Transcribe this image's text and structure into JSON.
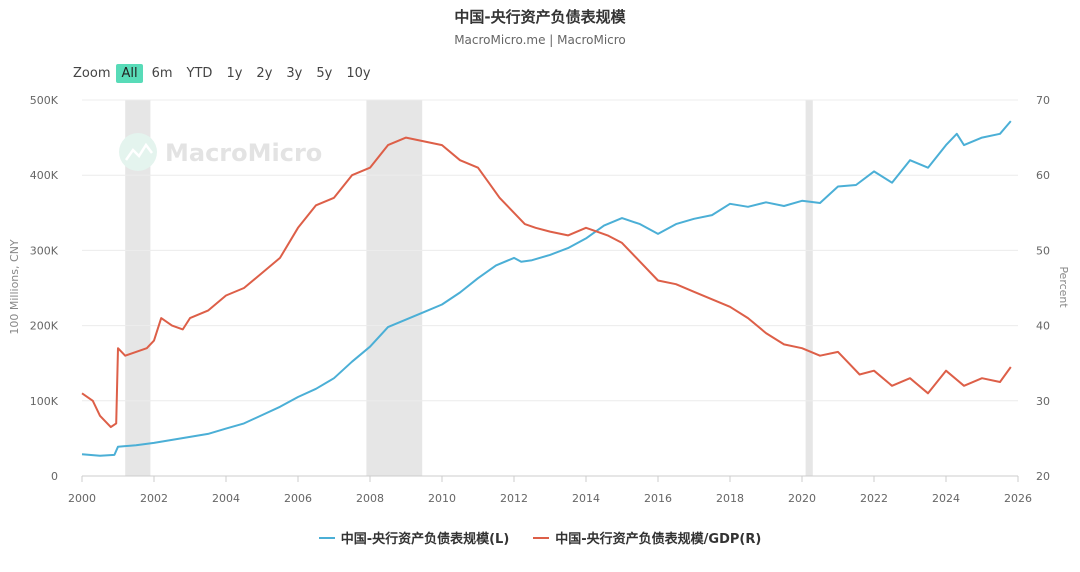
{
  "header": {
    "title": "中国-央行资产负债表规模",
    "subtitle": "MacroMicro.me | MacroMicro",
    "watermark": "MacroMicro"
  },
  "zoom": {
    "label": "Zoom",
    "buttons": [
      "All",
      "6m",
      "YTD",
      "1y",
      "2y",
      "3y",
      "5y",
      "10y"
    ],
    "active": "All"
  },
  "colors": {
    "left_series": "#4bafd6",
    "right_series": "#dd5f48",
    "shade": "#e6e6e6"
  },
  "chart_data": {
    "type": "line",
    "title": "中国-央行资产负债表规模",
    "subtitle": "MacroMicro.me | MacroMicro",
    "xlim": [
      2000,
      2026
    ],
    "x_ticks": [
      "2000",
      "2002",
      "2004",
      "2006",
      "2008",
      "2010",
      "2012",
      "2014",
      "2016",
      "2018",
      "2020",
      "2022",
      "2024",
      "2026"
    ],
    "y_left": {
      "label": "100 Millions, CNY",
      "lim": [
        0,
        500000
      ],
      "ticks": [
        "0",
        "100K",
        "200K",
        "300K",
        "400K",
        "500K"
      ]
    },
    "y_right": {
      "label": "Percent",
      "lim": [
        20,
        70
      ],
      "ticks": [
        "20",
        "30",
        "40",
        "50",
        "60",
        "70"
      ]
    },
    "grid": true,
    "legend_position": "bottom",
    "shaded_periods": [
      [
        2001.2,
        2001.9
      ],
      [
        2007.9,
        2009.45
      ],
      [
        2020.1,
        2020.3
      ]
    ],
    "series": [
      {
        "name": "中国-央行资产负债表规模(L)",
        "axis": "left",
        "x": [
          2000.0,
          2000.5,
          2000.9,
          2001.0,
          2001.5,
          2002.0,
          2002.5,
          2003.0,
          2003.5,
          2004.0,
          2004.5,
          2005.0,
          2005.5,
          2006.0,
          2006.5,
          2007.0,
          2007.5,
          2008.0,
          2008.5,
          2009.0,
          2009.5,
          2010.0,
          2010.5,
          2011.0,
          2011.5,
          2012.0,
          2012.2,
          2012.5,
          2013.0,
          2013.5,
          2014.0,
          2014.5,
          2015.0,
          2015.5,
          2016.0,
          2016.5,
          2017.0,
          2017.5,
          2018.0,
          2018.5,
          2019.0,
          2019.5,
          2020.0,
          2020.5,
          2021.0,
          2021.5,
          2022.0,
          2022.5,
          2023.0,
          2023.5,
          2024.0,
          2024.3,
          2024.5,
          2025.0,
          2025.5,
          2025.8
        ],
        "values": [
          29000,
          27000,
          28000,
          39000,
          41000,
          44000,
          48000,
          52000,
          56000,
          63000,
          70000,
          81000,
          92000,
          105000,
          116000,
          130000,
          152000,
          172000,
          198000,
          208000,
          218000,
          228000,
          244000,
          263000,
          280000,
          290000,
          285000,
          287000,
          294000,
          303000,
          316000,
          333000,
          343000,
          335000,
          322000,
          335000,
          342000,
          347000,
          362000,
          358000,
          364000,
          359000,
          366000,
          363000,
          385000,
          387000,
          405000,
          390000,
          420000,
          410000,
          440000,
          455000,
          440000,
          450000,
          455000,
          472000
        ]
      },
      {
        "name": "中国-央行资产负债表规模/GDP(R)",
        "axis": "right",
        "x": [
          2000.0,
          2000.3,
          2000.5,
          2000.8,
          2000.95,
          2001.0,
          2001.2,
          2001.5,
          2001.8,
          2002.0,
          2002.2,
          2002.5,
          2002.8,
          2003.0,
          2003.5,
          2004.0,
          2004.5,
          2005.0,
          2005.5,
          2006.0,
          2006.5,
          2007.0,
          2007.5,
          2008.0,
          2008.5,
          2009.0,
          2009.5,
          2010.0,
          2010.5,
          2011.0,
          2011.3,
          2011.6,
          2012.0,
          2012.3,
          2012.6,
          2013.0,
          2013.5,
          2014.0,
          2014.3,
          2014.6,
          2015.0,
          2015.5,
          2016.0,
          2016.5,
          2017.0,
          2017.5,
          2018.0,
          2018.5,
          2019.0,
          2019.5,
          2020.0,
          2020.5,
          2021.0,
          2021.3,
          2021.6,
          2022.0,
          2022.5,
          2023.0,
          2023.5,
          2024.0,
          2024.5,
          2025.0,
          2025.5,
          2025.8
        ],
        "values": [
          31,
          30,
          28,
          26.5,
          27,
          37,
          36,
          36.5,
          37,
          38,
          41,
          40,
          39.5,
          41,
          42,
          44,
          45,
          47,
          49,
          53,
          56,
          57,
          60,
          61,
          64,
          65,
          64.5,
          64,
          62,
          61,
          59,
          57,
          55,
          53.5,
          53,
          52.5,
          52,
          53,
          52.5,
          52,
          51,
          48.5,
          46,
          45.5,
          44.5,
          43.5,
          42.5,
          41,
          39,
          37.5,
          37,
          36,
          36.5,
          35,
          33.5,
          34,
          32,
          33,
          31,
          34,
          32,
          33,
          32.5,
          34.5
        ]
      }
    ]
  }
}
